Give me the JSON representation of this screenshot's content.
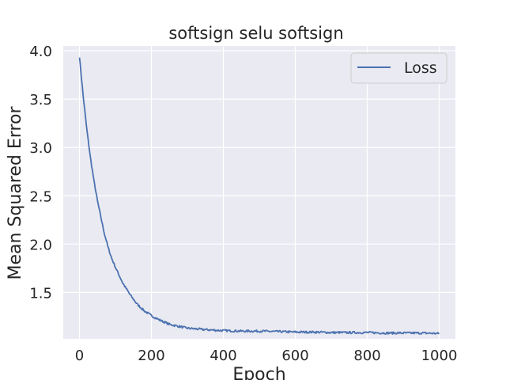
{
  "chart_data": {
    "type": "line",
    "title": "softsign selu softsign",
    "xlabel": "Epoch",
    "ylabel": "Mean Squared Error",
    "xlim": [
      -45,
      1045
    ],
    "ylim": [
      1.02,
      4.05
    ],
    "xticks": [
      0,
      200,
      400,
      600,
      800,
      1000
    ],
    "xtick_labels": [
      "0",
      "200",
      "400",
      "600",
      "800",
      "1000"
    ],
    "yticks": [
      1.5,
      2.0,
      2.5,
      3.0,
      3.5,
      4.0
    ],
    "ytick_labels": [
      "1.5",
      "2.0",
      "2.5",
      "3.0",
      "3.5",
      "4.0"
    ],
    "grid": true,
    "legend_position": "top-right",
    "series": [
      {
        "name": "Loss",
        "color": "#4c72b0",
        "x": [
          0,
          10,
          20,
          30,
          40,
          50,
          60,
          70,
          80,
          90,
          100,
          120,
          140,
          160,
          180,
          200,
          220,
          250,
          300,
          350,
          400,
          450,
          500,
          550,
          600,
          650,
          700,
          750,
          800,
          850,
          900,
          950,
          1000
        ],
        "y": [
          3.94,
          3.55,
          3.2,
          2.91,
          2.66,
          2.45,
          2.27,
          2.1,
          1.96,
          1.85,
          1.76,
          1.6,
          1.48,
          1.38,
          1.31,
          1.26,
          1.22,
          1.17,
          1.13,
          1.115,
          1.105,
          1.1,
          1.1,
          1.095,
          1.09,
          1.09,
          1.085,
          1.085,
          1.085,
          1.08,
          1.08,
          1.08,
          1.075
        ]
      }
    ]
  }
}
